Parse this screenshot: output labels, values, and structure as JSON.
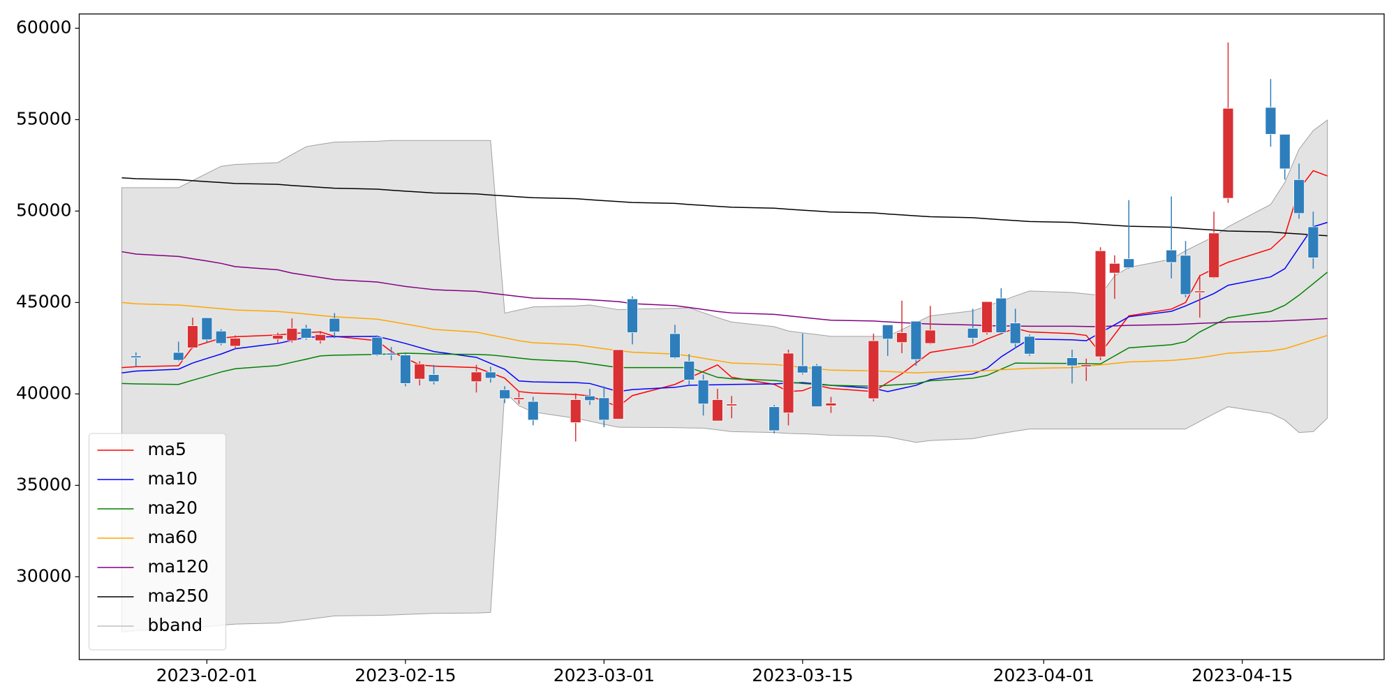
{
  "chart_data": {
    "type": "candlestick",
    "x": [
      "2023-01-26",
      "2023-01-27",
      "2023-01-30",
      "2023-01-31",
      "2023-02-01",
      "2023-02-02",
      "2023-02-03",
      "2023-02-06",
      "2023-02-07",
      "2023-02-08",
      "2023-02-09",
      "2023-02-10",
      "2023-02-13",
      "2023-02-14",
      "2023-02-15",
      "2023-02-16",
      "2023-02-17",
      "2023-02-20",
      "2023-02-21",
      "2023-02-22",
      "2023-02-23",
      "2023-02-24",
      "2023-02-27",
      "2023-02-28",
      "2023-03-01",
      "2023-03-02",
      "2023-03-03",
      "2023-03-06",
      "2023-03-07",
      "2023-03-08",
      "2023-03-09",
      "2023-03-10",
      "2023-03-13",
      "2023-03-14",
      "2023-03-15",
      "2023-03-16",
      "2023-03-17",
      "2023-03-20",
      "2023-03-21",
      "2023-03-22",
      "2023-03-23",
      "2023-03-24",
      "2023-03-27",
      "2023-03-28",
      "2023-03-29",
      "2023-03-30",
      "2023-03-31",
      "2023-04-03",
      "2023-04-04",
      "2023-04-05",
      "2023-04-06",
      "2023-04-07",
      "2023-04-10",
      "2023-04-11",
      "2023-04-12",
      "2023-04-13",
      "2023-04-14",
      "2023-04-17",
      "2023-04-18",
      "2023-04-19",
      "2023-04-20",
      "2023-04-21"
    ],
    "open": [
      null,
      42080,
      42270,
      42520,
      44170,
      43440,
      42610,
      43000,
      42910,
      43590,
      42910,
      44130,
      43100,
      42230,
      42130,
      40810,
      41060,
      40670,
      41200,
      40230,
      39690,
      39590,
      38430,
      39890,
      39790,
      38620,
      45200,
      43300,
      41790,
      40760,
      38520,
      39350,
      39300,
      38960,
      41540,
      41540,
      39350,
      39740,
      43780,
      42810,
      43980,
      42760,
      43590,
      43350,
      45240,
      43880,
      43150,
      41980,
      41490,
      42030,
      46610,
      47390,
      47870,
      47580,
      45540,
      46360,
      50700,
      55670,
      54200,
      51720,
      49140,
      null
    ],
    "high": [
      null,
      42270,
      42860,
      44170,
      44170,
      43540,
      43200,
      43350,
      44130,
      43780,
      43440,
      44420,
      43200,
      42570,
      42230,
      41790,
      41590,
      41590,
      41490,
      40420,
      40080,
      39840,
      40030,
      40280,
      40420,
      42420,
      45340,
      43780,
      42180,
      41060,
      40280,
      39890,
      39400,
      42420,
      43300,
      41640,
      39840,
      43300,
      43780,
      45100,
      43980,
      44810,
      44660,
      45050,
      45780,
      44660,
      43250,
      42420,
      41930,
      48020,
      47580,
      50600,
      50800,
      48360,
      46510,
      49970,
      59220,
      57220,
      54200,
      52600,
      49970,
      null
    ],
    "low": [
      null,
      41490,
      41790,
      42470,
      42810,
      42660,
      42470,
      42810,
      42810,
      42960,
      42760,
      43050,
      42080,
      41840,
      40420,
      40470,
      40520,
      40080,
      40620,
      39500,
      39450,
      38280,
      37400,
      39400,
      38180,
      38620,
      42710,
      41930,
      40420,
      38820,
      38520,
      38670,
      37840,
      38280,
      41060,
      39300,
      38960,
      39590,
      42080,
      42230,
      41540,
      42710,
      42760,
      43250,
      43250,
      42470,
      42080,
      40570,
      40710,
      41840,
      45200,
      46850,
      46320,
      45290,
      44170,
      46320,
      50450,
      53520,
      51720,
      49580,
      46850,
      null
    ],
    "close": [
      null,
      41980,
      41840,
      43730,
      42960,
      42760,
      43050,
      43200,
      43590,
      43050,
      43250,
      43390,
      42130,
      42130,
      40570,
      41640,
      40670,
      41200,
      40860,
      39740,
      39790,
      38570,
      39690,
      39640,
      38570,
      42420,
      43350,
      41980,
      40760,
      39450,
      39690,
      39450,
      37990,
      42230,
      41150,
      39300,
      39500,
      42910,
      43000,
      43350,
      41880,
      43490,
      43050,
      45050,
      43350,
      42760,
      42180,
      41540,
      41590,
      47830,
      47140,
      46900,
      47190,
      45440,
      45630,
      48800,
      55620,
      54200,
      52310,
      49870,
      47440,
      null
    ],
    "up_color": "#d93033",
    "down_color": "#2e7ebb",
    "series": [
      {
        "name": "ma5",
        "color": "#ff0000",
        "values": [
          41440,
          41490,
          41540,
          42570,
          42810,
          43050,
          43130,
          43220,
          43300,
          43350,
          43390,
          43150,
          42910,
          42320,
          41960,
          41590,
          41520,
          41440,
          41150,
          40860,
          40130,
          40050,
          39970,
          39890,
          39600,
          39300,
          39910,
          40520,
          40880,
          41230,
          41590,
          40910,
          40520,
          40130,
          40180,
          40470,
          40300,
          40130,
          40620,
          41100,
          41690,
          42270,
          42640,
          43000,
          43300,
          43590,
          43390,
          43300,
          43200,
          42230,
          43250,
          44270,
          44640,
          45000,
          46460,
          46850,
          47200,
          47930,
          48650,
          51190,
          52210,
          51920
        ]
      },
      {
        "name": "ma10",
        "color": "#0000ff",
        "values": [
          41150,
          41250,
          41350,
          41690,
          41940,
          42180,
          42470,
          42760,
          42930,
          43100,
          43120,
          43130,
          43150,
          42960,
          42760,
          42540,
          42320,
          42000,
          41670,
          41350,
          40710,
          40660,
          40620,
          40570,
          40350,
          40130,
          40240,
          40360,
          40470,
          40490,
          40500,
          40520,
          40550,
          40590,
          40620,
          40550,
          40470,
          40300,
          40130,
          40300,
          40470,
          40780,
          41090,
          41400,
          42030,
          42520,
          43000,
          42960,
          42910,
          43350,
          43780,
          44220,
          44520,
          44810,
          45150,
          45490,
          45940,
          46400,
          46850,
          48000,
          49140,
          49380
        ]
      },
      {
        "name": "ma20",
        "color": "#008000",
        "values": [
          40570,
          40550,
          40520,
          40750,
          40970,
          41200,
          41380,
          41550,
          41730,
          41900,
          42080,
          42120,
          42160,
          42190,
          42230,
          42210,
          42180,
          42160,
          42130,
          42050,
          41960,
          41880,
          41770,
          41660,
          41550,
          41440,
          41440,
          41440,
          41440,
          41180,
          40910,
          40830,
          40740,
          40660,
          40570,
          40520,
          40470,
          40420,
          40470,
          40520,
          40570,
          40720,
          40860,
          41010,
          41350,
          41690,
          41680,
          41670,
          41650,
          41640,
          42080,
          42520,
          42690,
          42860,
          43390,
          43780,
          44170,
          44510,
          44850,
          45400,
          46030,
          46660
        ]
      },
      {
        "name": "ma60",
        "color": "#ffa500",
        "values": [
          45000,
          44930,
          44860,
          44800,
          44730,
          44660,
          44590,
          44510,
          44440,
          44370,
          44290,
          44220,
          44090,
          43960,
          43820,
          43690,
          43530,
          43380,
          43220,
          43070,
          42910,
          42800,
          42690,
          42580,
          42470,
          42370,
          42280,
          42180,
          42080,
          41950,
          41820,
          41690,
          41610,
          41530,
          41460,
          41380,
          41300,
          41260,
          41230,
          41190,
          41150,
          41190,
          41230,
          41270,
          41320,
          41360,
          41400,
          41440,
          41520,
          41590,
          41670,
          41750,
          41830,
          41900,
          41980,
          42100,
          42230,
          42350,
          42470,
          42710,
          42960,
          43200
        ]
      },
      {
        "name": "ma120",
        "color": "#800080",
        "values": [
          47780,
          47650,
          47520,
          47390,
          47270,
          47140,
          46960,
          46790,
          46610,
          46490,
          46370,
          46250,
          46120,
          46000,
          45880,
          45790,
          45700,
          45610,
          45510,
          45420,
          45330,
          45240,
          45190,
          45150,
          45100,
          45050,
          44940,
          44830,
          44730,
          44620,
          44510,
          44430,
          44350,
          44270,
          44190,
          44110,
          44030,
          43990,
          43940,
          43900,
          43860,
          43820,
          43770,
          43730,
          43720,
          43710,
          43700,
          43700,
          43690,
          43680,
          43720,
          43750,
          43790,
          43820,
          43860,
          43890,
          43930,
          43970,
          44010,
          44040,
          44080,
          44120
        ]
      },
      {
        "name": "ma250",
        "color": "#000000",
        "values": [
          51820,
          51770,
          51720,
          51660,
          51610,
          51560,
          51510,
          51460,
          51400,
          51350,
          51300,
          51250,
          51200,
          51140,
          51090,
          51040,
          50990,
          50940,
          50880,
          50830,
          50780,
          50730,
          50680,
          50620,
          50570,
          50520,
          50470,
          50420,
          50360,
          50310,
          50260,
          50210,
          50160,
          50100,
          50050,
          50000,
          49950,
          49900,
          49840,
          49790,
          49740,
          49690,
          49640,
          49580,
          49530,
          49480,
          49430,
          49380,
          49320,
          49270,
          49220,
          49170,
          49120,
          49060,
          49010,
          48960,
          48910,
          48860,
          48800,
          48750,
          48700,
          48650
        ]
      }
    ],
    "band": {
      "name": "bband",
      "color": "#a0a0a0",
      "fill": "#e3e3e3",
      "upper": [
        51280,
        51280,
        51280,
        51670,
        52060,
        52450,
        52550,
        52650,
        53090,
        53520,
        53650,
        53770,
        53820,
        53860,
        53860,
        53860,
        53860,
        53860,
        53860,
        44420,
        44590,
        44760,
        44810,
        44860,
        44740,
        44610,
        44640,
        44680,
        44710,
        44440,
        44170,
        43930,
        43680,
        43440,
        43340,
        43250,
        43150,
        43150,
        43150,
        43520,
        43900,
        44270,
        44540,
        44810,
        45080,
        45360,
        45630,
        45550,
        45470,
        45390,
        46460,
        46920,
        47370,
        47830,
        48220,
        48600,
        49140,
        50360,
        51570,
        53380,
        54400,
        54980
      ],
      "lower": [
        26980,
        27060,
        27140,
        27220,
        27280,
        27350,
        27410,
        27470,
        27570,
        27660,
        27760,
        27860,
        27890,
        27910,
        27940,
        27970,
        28000,
        28020,
        28050,
        40130,
        39350,
        39010,
        38670,
        38510,
        38340,
        38180,
        38170,
        38160,
        38140,
        38130,
        38040,
        37940,
        37890,
        37840,
        37820,
        37790,
        37740,
        37700,
        37650,
        37500,
        37350,
        37450,
        37550,
        37700,
        37840,
        37960,
        38080,
        38080,
        38080,
        38080,
        38080,
        38080,
        38080,
        38080,
        38500,
        38910,
        39300,
        38940,
        38570,
        37890,
        37940,
        38670
      ]
    },
    "xlim": [
      "2023-01-23",
      "2023-04-25"
    ],
    "xticks": [
      "2023-02-01",
      "2023-02-15",
      "2023-03-01",
      "2023-03-15",
      "2023-04-01",
      "2023-04-15"
    ],
    "ylim": [
      25470,
      60780
    ],
    "yticks": [
      30000,
      35000,
      40000,
      45000,
      50000,
      55000,
      60000
    ],
    "legend": "lower left"
  }
}
